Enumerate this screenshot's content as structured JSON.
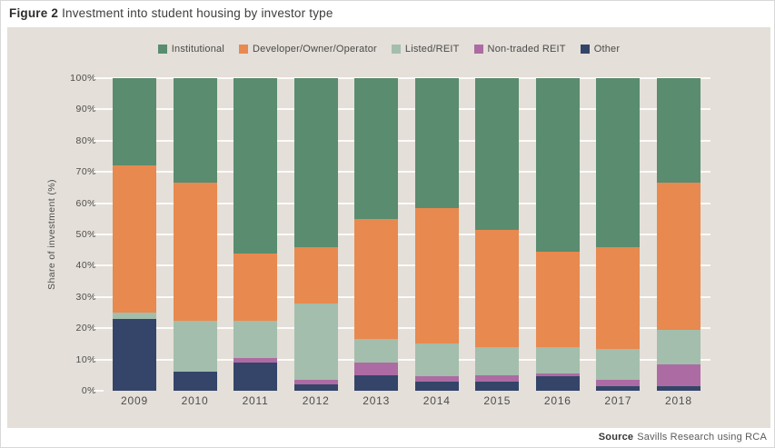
{
  "title": {
    "prefix": "Figure 2",
    "rest": "Investment into student housing by investor type"
  },
  "source": {
    "label": "Source",
    "text": "Savills Research using RCA"
  },
  "colors": {
    "panel_background": "#e4dfd8",
    "gridline": "#fcfbf9",
    "institutional": "#5a8c6f",
    "developer_owner_operator": "#e8894f",
    "listed_reit": "#a3beac",
    "non_traded_reit": "#ad6ba3",
    "other": "#344569",
    "text": "#4d4d4d"
  },
  "chart_data": {
    "type": "bar",
    "stacked": true,
    "title": "Figure 2 Investment into student housing by investor type",
    "xlabel": "",
    "ylabel": "Share of investment (%)",
    "ylim": [
      0,
      100
    ],
    "ytick_step": 10,
    "ytick_labels": [
      "0%",
      "10%",
      "20%",
      "30%",
      "40%",
      "50%",
      "60%",
      "70%",
      "80%",
      "90%",
      "100%"
    ],
    "grid": "horizontal-white",
    "legend_position": "top-center",
    "categories": [
      "2009",
      "2010",
      "2011",
      "2012",
      "2013",
      "2014",
      "2015",
      "2016",
      "2017",
      "2018"
    ],
    "stack_order_top_to_bottom": [
      "Institutional",
      "Developer/Owner/Operator",
      "Listed/REIT",
      "Non-traded REIT",
      "Other"
    ],
    "series": [
      {
        "name": "Institutional",
        "color": "#5a8c6f",
        "values": [
          28,
          33.5,
          56,
          54,
          45,
          41.5,
          48.5,
          55.5,
          54,
          33.5
        ]
      },
      {
        "name": "Developer/Owner/Operator",
        "color": "#e8894f",
        "values": [
          47,
          44,
          21.5,
          18,
          38.5,
          43.5,
          37.5,
          30.5,
          32.5,
          47
        ]
      },
      {
        "name": "Listed/REIT",
        "color": "#a3beac",
        "values": [
          2,
          16.5,
          12,
          24.5,
          7.5,
          10.5,
          9,
          8.5,
          10,
          11
        ]
      },
      {
        "name": "Non-traded REIT",
        "color": "#ad6ba3",
        "values": [
          0,
          0,
          1.5,
          1.5,
          4,
          1.5,
          2,
          1,
          2,
          7
        ]
      },
      {
        "name": "Other",
        "color": "#344569",
        "values": [
          23,
          6,
          9,
          2,
          5,
          3,
          3,
          4.5,
          1.5,
          1.5
        ]
      }
    ]
  }
}
